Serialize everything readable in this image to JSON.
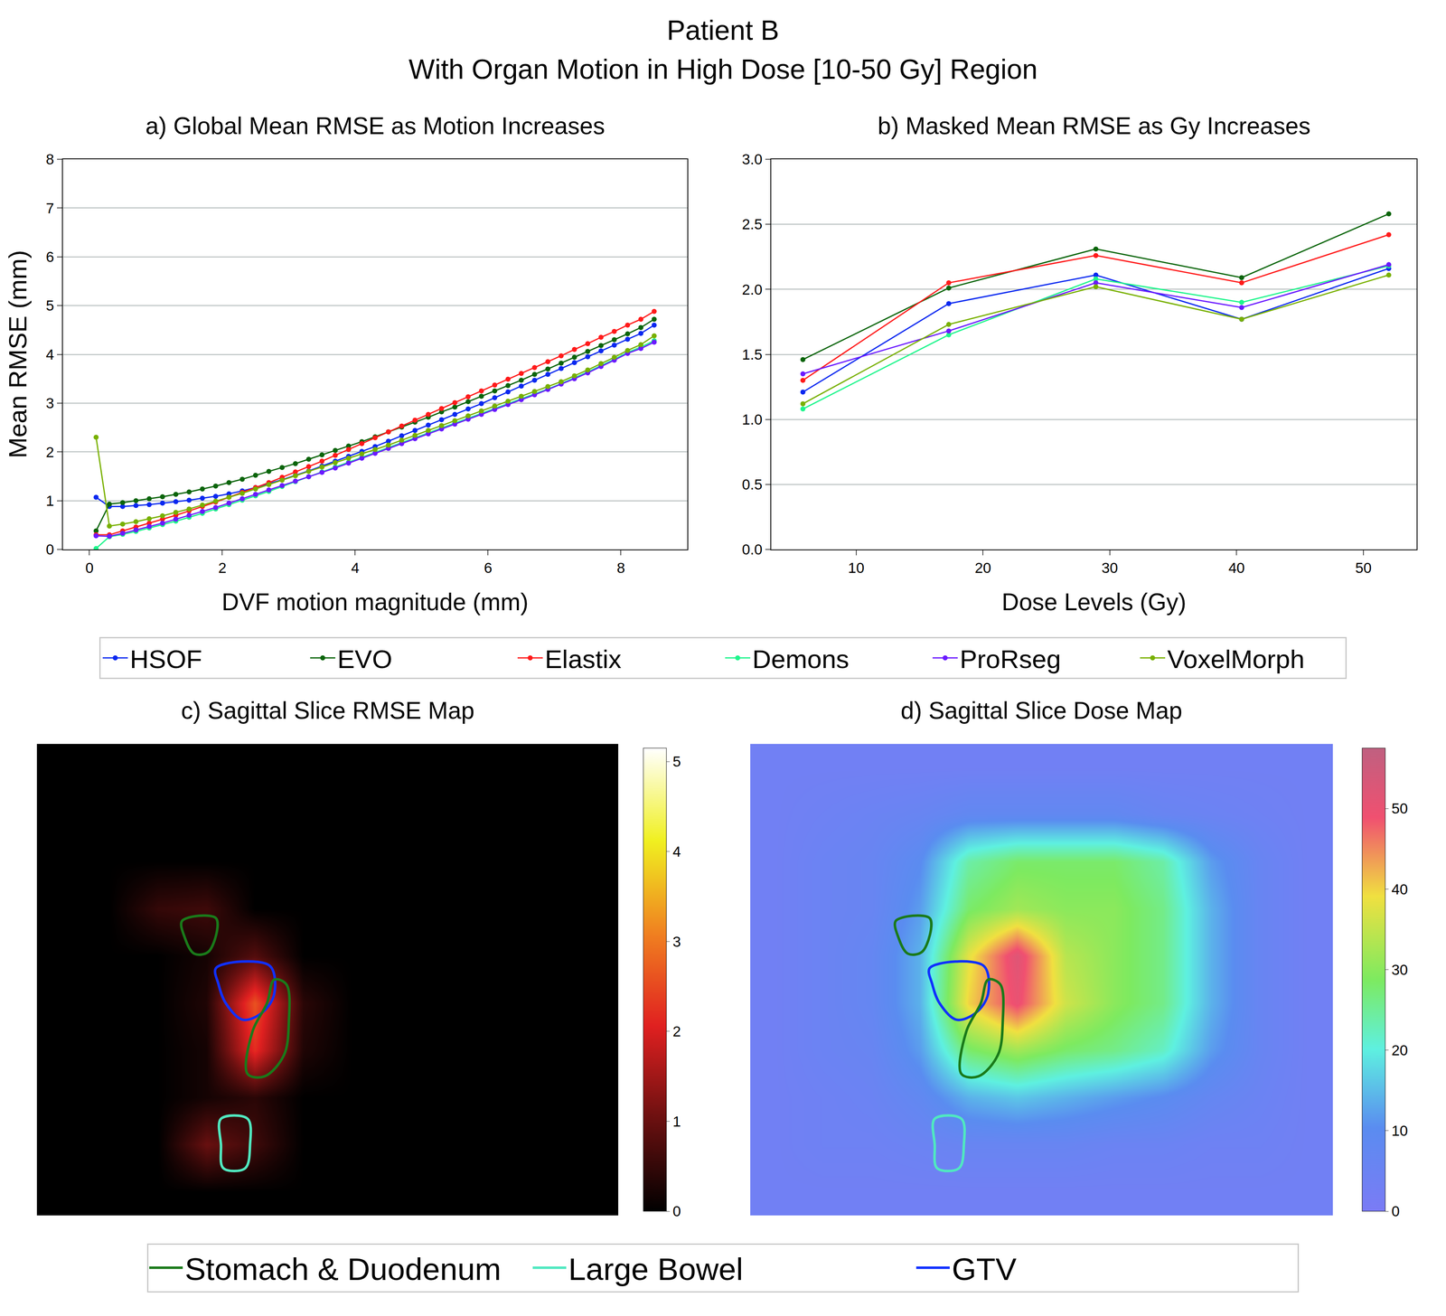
{
  "title": "Patient B",
  "subtitle": "With Organ Motion in High Dose [10-50 Gy] Region",
  "chart_data": [
    {
      "type": "line",
      "title": "a) Global Mean RMSE as Motion Increases",
      "x_label": "DVF motion magnitude (mm)",
      "y_label": "Mean RMSE (mm)",
      "x": [
        0.1,
        0.3,
        0.5,
        0.7,
        0.9,
        1.1,
        1.3,
        1.5,
        1.7,
        1.9,
        2.1,
        2.3,
        2.5,
        2.7,
        2.9,
        3.1,
        3.3,
        3.5,
        3.7,
        3.9,
        4.1,
        4.3,
        4.5,
        4.7,
        4.9,
        5.1,
        5.3,
        5.5,
        5.7,
        5.9,
        6.1,
        6.3,
        6.5,
        6.7,
        6.9,
        7.1,
        7.3,
        7.5,
        7.7,
        7.9,
        8.1,
        8.3,
        8.5
      ],
      "series": [
        {
          "name": "HSOF",
          "color": "#0a28f0",
          "values": [
            1.07,
            0.88,
            0.88,
            0.9,
            0.92,
            0.95,
            0.98,
            1.01,
            1.05,
            1.09,
            1.14,
            1.2,
            1.27,
            1.35,
            1.43,
            1.52,
            1.61,
            1.71,
            1.81,
            1.91,
            2.01,
            2.11,
            2.22,
            2.33,
            2.44,
            2.55,
            2.66,
            2.77,
            2.88,
            2.99,
            3.11,
            3.23,
            3.35,
            3.47,
            3.59,
            3.71,
            3.83,
            3.95,
            4.07,
            4.19,
            4.31,
            4.43,
            4.6
          ]
        },
        {
          "name": "EVO",
          "color": "#0a640a",
          "values": [
            0.38,
            0.93,
            0.96,
            1.0,
            1.04,
            1.08,
            1.13,
            1.18,
            1.24,
            1.3,
            1.37,
            1.44,
            1.52,
            1.6,
            1.68,
            1.76,
            1.85,
            1.94,
            2.03,
            2.12,
            2.21,
            2.31,
            2.41,
            2.51,
            2.61,
            2.71,
            2.82,
            2.92,
            3.03,
            3.14,
            3.25,
            3.36,
            3.47,
            3.59,
            3.7,
            3.82,
            3.94,
            4.06,
            4.18,
            4.3,
            4.42,
            4.55,
            4.72
          ]
        },
        {
          "name": "Elastix",
          "color": "#ff1a1a",
          "values": [
            0.3,
            0.3,
            0.38,
            0.46,
            0.54,
            0.62,
            0.7,
            0.79,
            0.88,
            0.97,
            1.07,
            1.17,
            1.27,
            1.37,
            1.48,
            1.59,
            1.7,
            1.81,
            1.93,
            2.05,
            2.17,
            2.29,
            2.41,
            2.53,
            2.65,
            2.77,
            2.89,
            3.01,
            3.13,
            3.25,
            3.37,
            3.49,
            3.61,
            3.73,
            3.85,
            3.97,
            4.1,
            4.22,
            4.35,
            4.47,
            4.6,
            4.72,
            4.88
          ]
        },
        {
          "name": "Demons",
          "color": "#1ef58c",
          "values": [
            0.02,
            0.26,
            0.31,
            0.37,
            0.44,
            0.51,
            0.58,
            0.66,
            0.74,
            0.83,
            0.92,
            1.01,
            1.1,
            1.19,
            1.29,
            1.39,
            1.49,
            1.59,
            1.69,
            1.79,
            1.89,
            1.99,
            2.09,
            2.19,
            2.29,
            2.39,
            2.49,
            2.59,
            2.69,
            2.79,
            2.89,
            2.99,
            3.09,
            3.19,
            3.29,
            3.4,
            3.52,
            3.64,
            3.77,
            3.9,
            4.04,
            4.15,
            4.28
          ]
        },
        {
          "name": "ProRseg",
          "color": "#6a1aff",
          "values": [
            0.28,
            0.27,
            0.33,
            0.4,
            0.47,
            0.54,
            0.62,
            0.7,
            0.78,
            0.86,
            0.95,
            1.04,
            1.13,
            1.22,
            1.31,
            1.4,
            1.49,
            1.58,
            1.67,
            1.77,
            1.87,
            1.97,
            2.07,
            2.17,
            2.27,
            2.37,
            2.47,
            2.57,
            2.67,
            2.77,
            2.87,
            2.97,
            3.07,
            3.17,
            3.28,
            3.39,
            3.5,
            3.62,
            3.75,
            3.88,
            4.02,
            4.12,
            4.25
          ]
        },
        {
          "name": "VoxelMorph",
          "color": "#78b000",
          "values": [
            2.3,
            0.48,
            0.52,
            0.57,
            0.63,
            0.69,
            0.76,
            0.83,
            0.91,
            0.99,
            1.07,
            1.15,
            1.24,
            1.33,
            1.42,
            1.51,
            1.6,
            1.69,
            1.78,
            1.87,
            1.96,
            2.05,
            2.14,
            2.24,
            2.34,
            2.44,
            2.54,
            2.64,
            2.74,
            2.84,
            2.94,
            3.04,
            3.14,
            3.24,
            3.34,
            3.44,
            3.56,
            3.68,
            3.81,
            3.94,
            4.08,
            4.2,
            4.38
          ]
        }
      ],
      "xlim": [
        -0.4,
        9.0
      ],
      "xticks": [
        0,
        2,
        4,
        6,
        8
      ],
      "ylim": [
        0,
        8
      ],
      "yticks": [
        0,
        1,
        2,
        3,
        4,
        5,
        6,
        7,
        8
      ],
      "grid": "y",
      "marker": "circle",
      "line_style": "solid",
      "legend": "bottom"
    },
    {
      "type": "line",
      "title": "b) Masked Mean RMSE as Gy Increases",
      "x_label": "Dose Levels (Gy)",
      "x": [
        5.8,
        17.3,
        28.9,
        40.4,
        52.0
      ],
      "series": [
        {
          "name": "HSOF",
          "color": "#0a28f0",
          "values": [
            1.21,
            1.89,
            2.11,
            1.77,
            2.16
          ]
        },
        {
          "name": "EVO",
          "color": "#0a640a",
          "values": [
            1.46,
            2.01,
            2.31,
            2.09,
            2.58
          ]
        },
        {
          "name": "Elastix",
          "color": "#ff1a1a",
          "values": [
            1.3,
            2.05,
            2.26,
            2.05,
            2.42
          ]
        },
        {
          "name": "Demons",
          "color": "#1ef58c",
          "values": [
            1.08,
            1.65,
            2.08,
            1.9,
            2.18
          ]
        },
        {
          "name": "ProRseg",
          "color": "#6a1aff",
          "values": [
            1.35,
            1.68,
            2.05,
            1.86,
            2.19
          ]
        },
        {
          "name": "VoxelMorph",
          "color": "#78b000",
          "values": [
            1.12,
            1.73,
            2.02,
            1.77,
            2.11
          ]
        }
      ],
      "xlim": [
        3.3,
        54.2
      ],
      "xticks": [
        10,
        20,
        30,
        40,
        50
      ],
      "ylim": [
        0,
        3.0
      ],
      "yticks": [
        {
          "value": 0,
          "label": "0.0"
        },
        {
          "value": 0.5,
          "label": "0.5"
        },
        {
          "value": 1,
          "label": "1.0"
        },
        {
          "value": 1.5,
          "label": "1.5"
        },
        {
          "value": 2,
          "label": "2.0"
        },
        {
          "value": 2.5,
          "label": "2.5"
        },
        {
          "value": 3,
          "label": "3.0"
        }
      ],
      "grid": "y",
      "marker": "circle",
      "line_style": "solid"
    },
    {
      "type": "heatmap",
      "title": "c) Sagittal Slice RMSE Map",
      "cells": [
        [
          0,
          0,
          0,
          0,
          0,
          0,
          0,
          0,
          0,
          0,
          0,
          0
        ],
        [
          0,
          0,
          0,
          0,
          0,
          0,
          0,
          0,
          0,
          0,
          0,
          0
        ],
        [
          0,
          0,
          0,
          0,
          0,
          0,
          0,
          0,
          0,
          0,
          0,
          0
        ],
        [
          0,
          0,
          0.5,
          0.6,
          0,
          0,
          0,
          0,
          0,
          0,
          0,
          0
        ],
        [
          0,
          0,
          0,
          0.2,
          0.8,
          0,
          0,
          0,
          0,
          0,
          0,
          0
        ],
        [
          0,
          0,
          0,
          0.3,
          2.6,
          0.4,
          0,
          0,
          0,
          0,
          0,
          0
        ],
        [
          0,
          0,
          0,
          0.2,
          2.2,
          0.3,
          0,
          0,
          0,
          0,
          0,
          0
        ],
        [
          0,
          0,
          0,
          0.2,
          0.4,
          0,
          0,
          0,
          0,
          0,
          0,
          0
        ],
        [
          0,
          0,
          0,
          1.0,
          0.6,
          0,
          0,
          0,
          0,
          0,
          0,
          0
        ],
        [
          0,
          0,
          0,
          0,
          0,
          0,
          0,
          0,
          0,
          0,
          0,
          0
        ]
      ],
      "colorbar": {
        "range": [
          0,
          5.15
        ],
        "ticks": [
          0,
          1,
          2,
          3,
          4,
          5
        ]
      },
      "tick_labels": false,
      "legend": "bottom",
      "contours": [
        {
          "name": "Stomach & Duodenum",
          "color": "#1a7a1a",
          "x": [
            2.5,
            3.2,
            3.05,
            2.75,
            2.55
          ],
          "y": [
            3.25,
            3.2,
            3.9,
            3.95,
            3.6
          ]
        },
        {
          "name": "Large Bowel",
          "color": "#50e8c0",
          "x": [
            3.3,
            3.85,
            3.9,
            3.8,
            3.35,
            3.3
          ],
          "y": [
            7.45,
            7.45,
            8.0,
            8.5,
            8.5,
            8.0
          ]
        },
        {
          "name": "GTV",
          "color": "#1030ff",
          "x": [
            3.2,
            4.3,
            4.4,
            4.15,
            3.75,
            3.4,
            3.25
          ],
          "y": [
            4.25,
            4.2,
            4.8,
            5.2,
            5.35,
            5.0,
            4.6
          ]
        },
        {
          "name": "Stomach & Duodenum",
          "color": "#1a7a1a",
          "x": [
            4.4,
            4.65,
            4.7,
            4.6,
            4.2,
            3.85,
            3.95,
            4.25
          ],
          "y": [
            4.5,
            4.6,
            5.4,
            6.1,
            6.55,
            6.5,
            5.6,
            5.0
          ]
        }
      ]
    },
    {
      "type": "heatmap",
      "title": "d) Sagittal Slice Dose Map",
      "cells": [
        [
          3,
          3,
          3,
          3,
          3,
          3,
          3,
          3,
          3,
          3,
          3,
          3
        ],
        [
          3,
          4,
          5,
          6,
          8,
          8,
          8,
          8,
          6,
          5,
          4,
          3
        ],
        [
          3,
          5,
          6,
          10,
          24,
          28,
          28,
          28,
          24,
          12,
          6,
          3
        ],
        [
          3,
          5,
          6,
          12,
          28,
          32,
          30,
          30,
          26,
          14,
          6,
          3
        ],
        [
          3,
          5,
          7,
          14,
          38,
          52,
          34,
          30,
          26,
          14,
          6,
          3
        ],
        [
          3,
          5,
          7,
          14,
          40,
          50,
          36,
          30,
          26,
          14,
          6,
          3
        ],
        [
          3,
          5,
          6,
          12,
          28,
          32,
          28,
          26,
          22,
          12,
          6,
          3
        ],
        [
          3,
          4,
          5,
          8,
          14,
          16,
          14,
          12,
          10,
          7,
          5,
          3
        ],
        [
          3,
          4,
          4,
          5,
          6,
          6,
          6,
          5,
          5,
          4,
          4,
          3
        ],
        [
          3,
          3,
          3,
          3,
          3,
          3,
          3,
          3,
          3,
          3,
          3,
          3
        ]
      ],
      "colorbar": {
        "range": [
          0,
          57.5
        ],
        "ticks": [
          0,
          10,
          20,
          30,
          40,
          50
        ]
      },
      "tick_labels": false,
      "contours": [
        {
          "name": "Stomach & Duodenum",
          "color": "#1a7a1a",
          "x": [
            2.5,
            3.2,
            3.05,
            2.75,
            2.55
          ],
          "y": [
            3.25,
            3.2,
            3.9,
            3.95,
            3.6
          ]
        },
        {
          "name": "Large Bowel",
          "color": "#50e8c0",
          "x": [
            3.3,
            3.85,
            3.9,
            3.8,
            3.35,
            3.3
          ],
          "y": [
            7.45,
            7.45,
            8.0,
            8.5,
            8.5,
            8.0
          ]
        },
        {
          "name": "GTV",
          "color": "#1030ff",
          "x": [
            3.2,
            4.3,
            4.4,
            4.15,
            3.75,
            3.4,
            3.25
          ],
          "y": [
            4.25,
            4.2,
            4.8,
            5.2,
            5.35,
            5.0,
            4.6
          ]
        },
        {
          "name": "Stomach & Duodenum",
          "color": "#1a7a1a",
          "x": [
            4.4,
            4.65,
            4.7,
            4.6,
            4.2,
            3.85,
            3.95,
            4.25
          ],
          "y": [
            4.5,
            4.6,
            5.4,
            6.1,
            6.55,
            6.5,
            5.6,
            5.0
          ]
        }
      ]
    }
  ]
}
